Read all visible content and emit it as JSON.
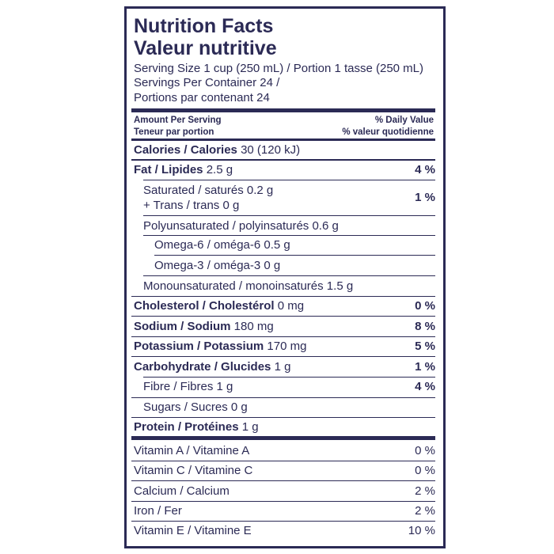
{
  "header": {
    "title": "Nutrition Facts",
    "title_fr": "Valeur nutritive",
    "serving_size": "Serving Size 1 cup (250 mL) / Portion 1 tasse (250 mL)",
    "servings_1": "Servings Per Container 24 /",
    "servings_2": "Portions par contenant 24"
  },
  "columns": {
    "amount": "Amount Per Serving",
    "amount_fr": "Teneur par portion",
    "dv": "% Daily Value",
    "dv_fr": "% valeur quotidienne"
  },
  "rows": [
    {
      "bold": "Calories / Calories",
      "text": "30 (120 kJ)"
    },
    {
      "bold": "Fat / Lipides",
      "text": "2.5 g",
      "dv": "4 %"
    },
    {
      "text": "Saturated / saturés 0.2 g",
      "text2": "+ Trans / trans 0 g",
      "dv": "1 %"
    },
    {
      "text": "Polyunsaturated / polyinsaturés 0.6 g"
    },
    {
      "text": "Omega-6 / oméga-6 0.5 g"
    },
    {
      "text": "Omega-3 / oméga-3 0 g"
    },
    {
      "text": "Monounsaturated / monoinsaturés 1.5 g"
    },
    {
      "bold": "Cholesterol / Cholestérol",
      "text": "0 mg",
      "dv": "0 %"
    },
    {
      "bold": "Sodium / Sodium",
      "text": "180 mg",
      "dv": "8 %"
    },
    {
      "bold": "Potassium / Potassium",
      "text": "170 mg",
      "dv": "5 %"
    },
    {
      "bold": "Carbohydrate / Glucides",
      "text": "1 g",
      "dv": "1 %"
    },
    {
      "text": "Fibre / Fibres 1 g",
      "dv": "4 %"
    },
    {
      "text": "Sugars / Sucres 0 g"
    },
    {
      "bold": "Protein / Protéines",
      "text": "1 g"
    }
  ],
  "vitamins": [
    {
      "text": "Vitamin A / Vitamine A",
      "dv": "0 %"
    },
    {
      "text": "Vitamin C / Vitamine C",
      "dv": "0 %"
    },
    {
      "text": "Calcium / Calcium",
      "dv": "2 %"
    },
    {
      "text": "Iron / Fer",
      "dv": "2 %"
    },
    {
      "text": "Vitamin E / Vitamine E",
      "dv": "10 %"
    }
  ]
}
